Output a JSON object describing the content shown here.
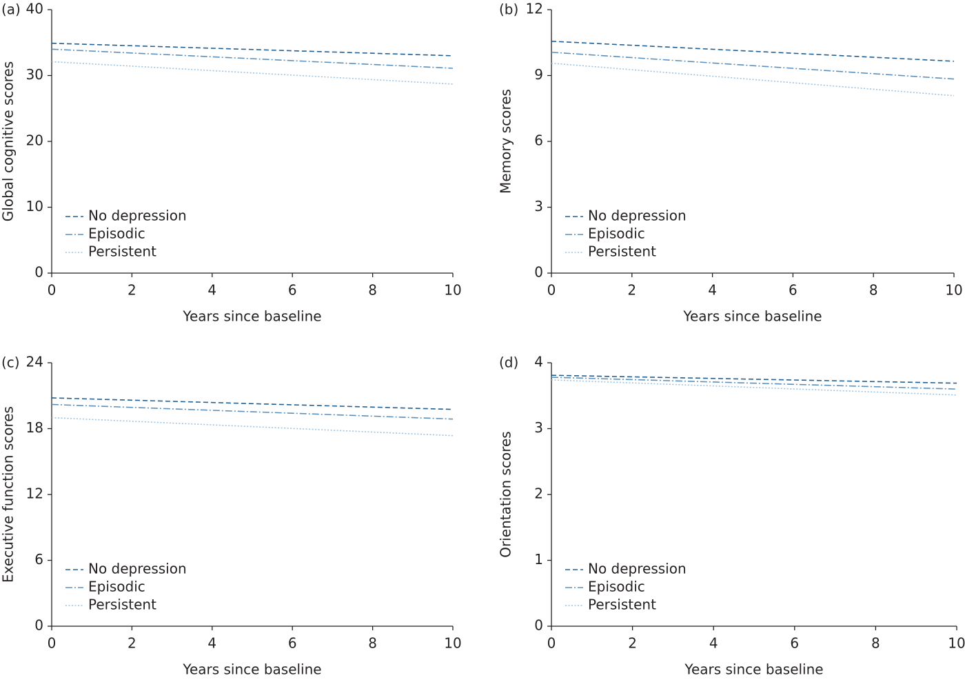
{
  "chart_data": [
    {
      "type": "line",
      "panel": "(a)",
      "ylabel": "Global cognitive scores",
      "xlabel": "Years since baseline",
      "x": [
        0,
        10
      ],
      "xlim": [
        0,
        10
      ],
      "xticks": [
        0,
        2,
        4,
        6,
        8,
        10
      ],
      "ylim": [
        0,
        40
      ],
      "yticks": [
        0,
        10,
        20,
        30,
        40
      ],
      "legend": "lower left",
      "series": [
        {
          "name": "No depression",
          "color": "#1f5f94",
          "style": "dashed",
          "values": [
            34.9,
            33.0
          ]
        },
        {
          "name": "Episodic",
          "color": "#5b90bd",
          "style": "dashdot",
          "values": [
            34.0,
            31.1
          ]
        },
        {
          "name": "Persistent",
          "color": "#9cc4e2",
          "style": "dotted",
          "values": [
            32.1,
            28.7
          ]
        }
      ]
    },
    {
      "type": "line",
      "panel": "(b)",
      "ylabel": "Memory scores",
      "xlabel": "Years since baseline",
      "x": [
        0,
        10
      ],
      "xlim": [
        0,
        10
      ],
      "xticks": [
        0,
        2,
        4,
        6,
        8,
        10
      ],
      "ylim": [
        0,
        12
      ],
      "yticks": [
        0,
        3,
        6,
        9,
        12
      ],
      "legend": "lower left",
      "series": [
        {
          "name": "No depression",
          "color": "#1f5f94",
          "style": "dashed",
          "values": [
            10.56,
            9.65
          ]
        },
        {
          "name": "Episodic",
          "color": "#5b90bd",
          "style": "dashdot",
          "values": [
            10.06,
            8.84
          ]
        },
        {
          "name": "Persistent",
          "color": "#9cc4e2",
          "style": "dotted",
          "values": [
            9.56,
            8.08
          ]
        }
      ]
    },
    {
      "type": "line",
      "panel": "(c)",
      "ylabel": "Executive function scores",
      "xlabel": "Years since baseline",
      "x": [
        0,
        10
      ],
      "xlim": [
        0,
        10
      ],
      "xticks": [
        0,
        2,
        4,
        6,
        8,
        10
      ],
      "ylim": [
        0,
        24
      ],
      "yticks": [
        0,
        6,
        12,
        18,
        24
      ],
      "legend": "lower left",
      "series": [
        {
          "name": "No depression",
          "color": "#1f5f94",
          "style": "dashed",
          "values": [
            20.8,
            19.75
          ]
        },
        {
          "name": "Episodic",
          "color": "#5b90bd",
          "style": "dashdot",
          "values": [
            20.2,
            18.87
          ]
        },
        {
          "name": "Persistent",
          "color": "#9cc4e2",
          "style": "dotted",
          "values": [
            19.0,
            17.36
          ]
        }
      ]
    },
    {
      "type": "line",
      "panel": "(d)",
      "ylabel": "Orientation scores",
      "xlabel": "Years since baseline",
      "x": [
        0,
        10
      ],
      "xlim": [
        0,
        10
      ],
      "xticks": [
        0,
        2,
        4,
        6,
        8,
        10
      ],
      "ylim": [
        0,
        4
      ],
      "yticks": [
        0,
        1,
        2,
        3,
        4
      ],
      "legend": "lower left",
      "series": [
        {
          "name": "No depression",
          "color": "#1f5f94",
          "style": "dashed",
          "values": [
            3.81,
            3.69
          ]
        },
        {
          "name": "Episodic",
          "color": "#5b90bd",
          "style": "dashdot",
          "values": [
            3.78,
            3.6
          ]
        },
        {
          "name": "Persistent",
          "color": "#9cc4e2",
          "style": "dotted",
          "values": [
            3.74,
            3.51
          ]
        }
      ]
    }
  ]
}
